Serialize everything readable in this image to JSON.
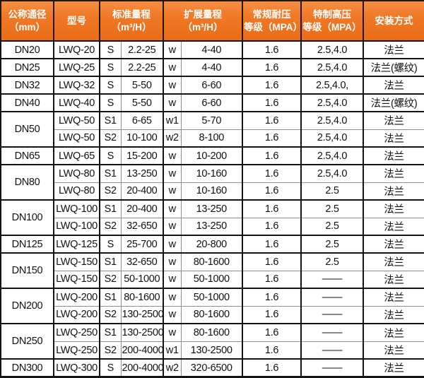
{
  "colors": {
    "header_background": "#F07A28",
    "header_text": "#FFFFFF",
    "grid_major": "#141414",
    "grid_minor": "#8F8F8F",
    "body_text": "#111111",
    "body_background": "#FFFFFF"
  },
  "table": {
    "columns": [
      {
        "key": "diameter",
        "label": "公称通径\n（mm）",
        "colspan": 1
      },
      {
        "key": "model",
        "label": "型号",
        "colspan": 1
      },
      {
        "key": "std_range",
        "label": "标准量程\n（m³/H）",
        "colspan": 2
      },
      {
        "key": "ext_range",
        "label": "扩展量程\n（m³/H）",
        "colspan": 2
      },
      {
        "key": "normal_pressure",
        "label": "常规耐压\n等级（MPA）",
        "colspan": 1
      },
      {
        "key": "high_pressure",
        "label": "特制高压\n等级（MPA）",
        "colspan": 1
      },
      {
        "key": "installation",
        "label": "安装方式",
        "colspan": 1
      }
    ],
    "groups": [
      {
        "diameter": "DN20",
        "rows": [
          {
            "model": "LWQ-20",
            "std_code": "S",
            "std_range": "2.2-25",
            "ext_code": "w",
            "ext_range": "4-40",
            "normal_pressure": "1.6",
            "high_pressure": "2.5,4.0",
            "installation": "法兰"
          }
        ]
      },
      {
        "diameter": "DN25",
        "rows": [
          {
            "model": "LWQ-25",
            "std_code": "S",
            "std_range": "2.2-25",
            "ext_code": "w",
            "ext_range": "4-40",
            "normal_pressure": "1.6",
            "high_pressure": "2.5,4.0",
            "installation": "法兰(螺纹)"
          }
        ]
      },
      {
        "diameter": "DN32",
        "rows": [
          {
            "model": "LWQ-32",
            "std_code": "S",
            "std_range": "5-50",
            "ext_code": "w",
            "ext_range": "6-60",
            "normal_pressure": "1.6",
            "high_pressure": "2.5,4.0,",
            "installation": "法兰"
          }
        ]
      },
      {
        "diameter": "DN40",
        "rows": [
          {
            "model": "LWQ-40",
            "std_code": "S",
            "std_range": "5-50",
            "ext_code": "w",
            "ext_range": "6-60",
            "normal_pressure": "1.6",
            "high_pressure": "2.5,4.0",
            "installation": "法兰(螺纹)"
          }
        ]
      },
      {
        "diameter": "DN50",
        "rows": [
          {
            "model": "LWQ-50",
            "std_code": "S1",
            "std_range": "6-65",
            "ext_code": "w1",
            "ext_range": "5-70",
            "normal_pressure": "1.6",
            "high_pressure": "2.5,4.0",
            "installation": "法兰"
          },
          {
            "model": "LWQ-50",
            "std_code": "S2",
            "std_range": "10-100",
            "ext_code": "w2",
            "ext_range": "8-100",
            "normal_pressure": "1.6",
            "high_pressure": "2.5,4.0",
            "installation": "法兰"
          }
        ]
      },
      {
        "diameter": "DN65",
        "rows": [
          {
            "model": "LWQ-65",
            "std_code": "S",
            "std_range": "15-200",
            "ext_code": "w",
            "ext_range": "10-200",
            "normal_pressure": "1.6",
            "high_pressure": "2.5,4.0",
            "installation": "法兰"
          }
        ]
      },
      {
        "diameter": "DN80",
        "rows": [
          {
            "model": "LWQ-80",
            "std_code": "S1",
            "std_range": "13-250",
            "ext_code": "w",
            "ext_range": "10-160",
            "normal_pressure": "1.6",
            "high_pressure": "2.5,4.0",
            "installation": "法兰"
          },
          {
            "model": "LWQ-80",
            "std_code": "S2",
            "std_range": "20-400",
            "ext_code": "w",
            "ext_range": "10-160",
            "normal_pressure": "1.6",
            "high_pressure": "2.5",
            "installation": "法兰"
          }
        ]
      },
      {
        "diameter": "DN100",
        "rows": [
          {
            "model": "LWQ-100",
            "std_code": "S1",
            "std_range": "20-400",
            "ext_code": "w",
            "ext_range": "13-250",
            "normal_pressure": "1.6",
            "high_pressure": "2.5",
            "installation": "法兰"
          },
          {
            "model": "LWQ-100",
            "std_code": "S2",
            "std_range": "32-650",
            "ext_code": "w",
            "ext_range": "13-250",
            "normal_pressure": "1.6",
            "high_pressure": "2.5",
            "installation": "法兰"
          }
        ]
      },
      {
        "diameter": "DN125",
        "rows": [
          {
            "model": "LWQ-125",
            "std_code": "S",
            "std_range": "25-700",
            "ext_code": "w",
            "ext_range": "20-800",
            "normal_pressure": "1.6",
            "high_pressure": "2.5",
            "installation": "法兰"
          }
        ]
      },
      {
        "diameter": "DN150",
        "rows": [
          {
            "model": "LWQ-150",
            "std_code": "S1",
            "std_range": "32-650",
            "ext_code": "w",
            "ext_range": "80-1600",
            "normal_pressure": "1.6",
            "high_pressure": "2.5",
            "installation": "法兰"
          },
          {
            "model": "LWQ-150",
            "std_code": "S2",
            "std_range": "50-1000",
            "ext_code": "w",
            "ext_range": "50-1000",
            "normal_pressure": "1.6",
            "high_pressure": "——",
            "installation": "法兰"
          }
        ]
      },
      {
        "diameter": "DN200",
        "rows": [
          {
            "model": "LWQ-200",
            "std_code": "S1",
            "std_range": "80-1600",
            "ext_code": "w",
            "ext_range": "50-1000",
            "normal_pressure": "1.6",
            "high_pressure": "——",
            "installation": "法兰"
          },
          {
            "model": "LWQ-200",
            "std_code": "S2",
            "std_range": "130-2500",
            "ext_code": "w",
            "ext_range": "80-1600",
            "normal_pressure": "1.6",
            "high_pressure": "——",
            "installation": "法兰"
          }
        ]
      },
      {
        "diameter": "DN250",
        "rows": [
          {
            "model": "LWQ-250",
            "std_code": "S1",
            "std_range": "130-2500",
            "ext_code": "w",
            "ext_range": "80-1600",
            "normal_pressure": "1.6",
            "high_pressure": "——",
            "installation": "法兰"
          },
          {
            "model": "LWQ-250",
            "std_code": "S2",
            "std_range": "200-4000",
            "ext_code": "w1",
            "ext_range": "130-2500",
            "normal_pressure": "1.6",
            "high_pressure": "——",
            "installation": "法兰"
          }
        ]
      },
      {
        "diameter": "DN300",
        "rows": [
          {
            "model": "LWQ-300",
            "std_code": "S",
            "std_range": "200-4000",
            "ext_code": "w2",
            "ext_range": "320-6500",
            "normal_pressure": "1.6",
            "high_pressure": "——",
            "installation": "法兰"
          }
        ]
      }
    ]
  }
}
